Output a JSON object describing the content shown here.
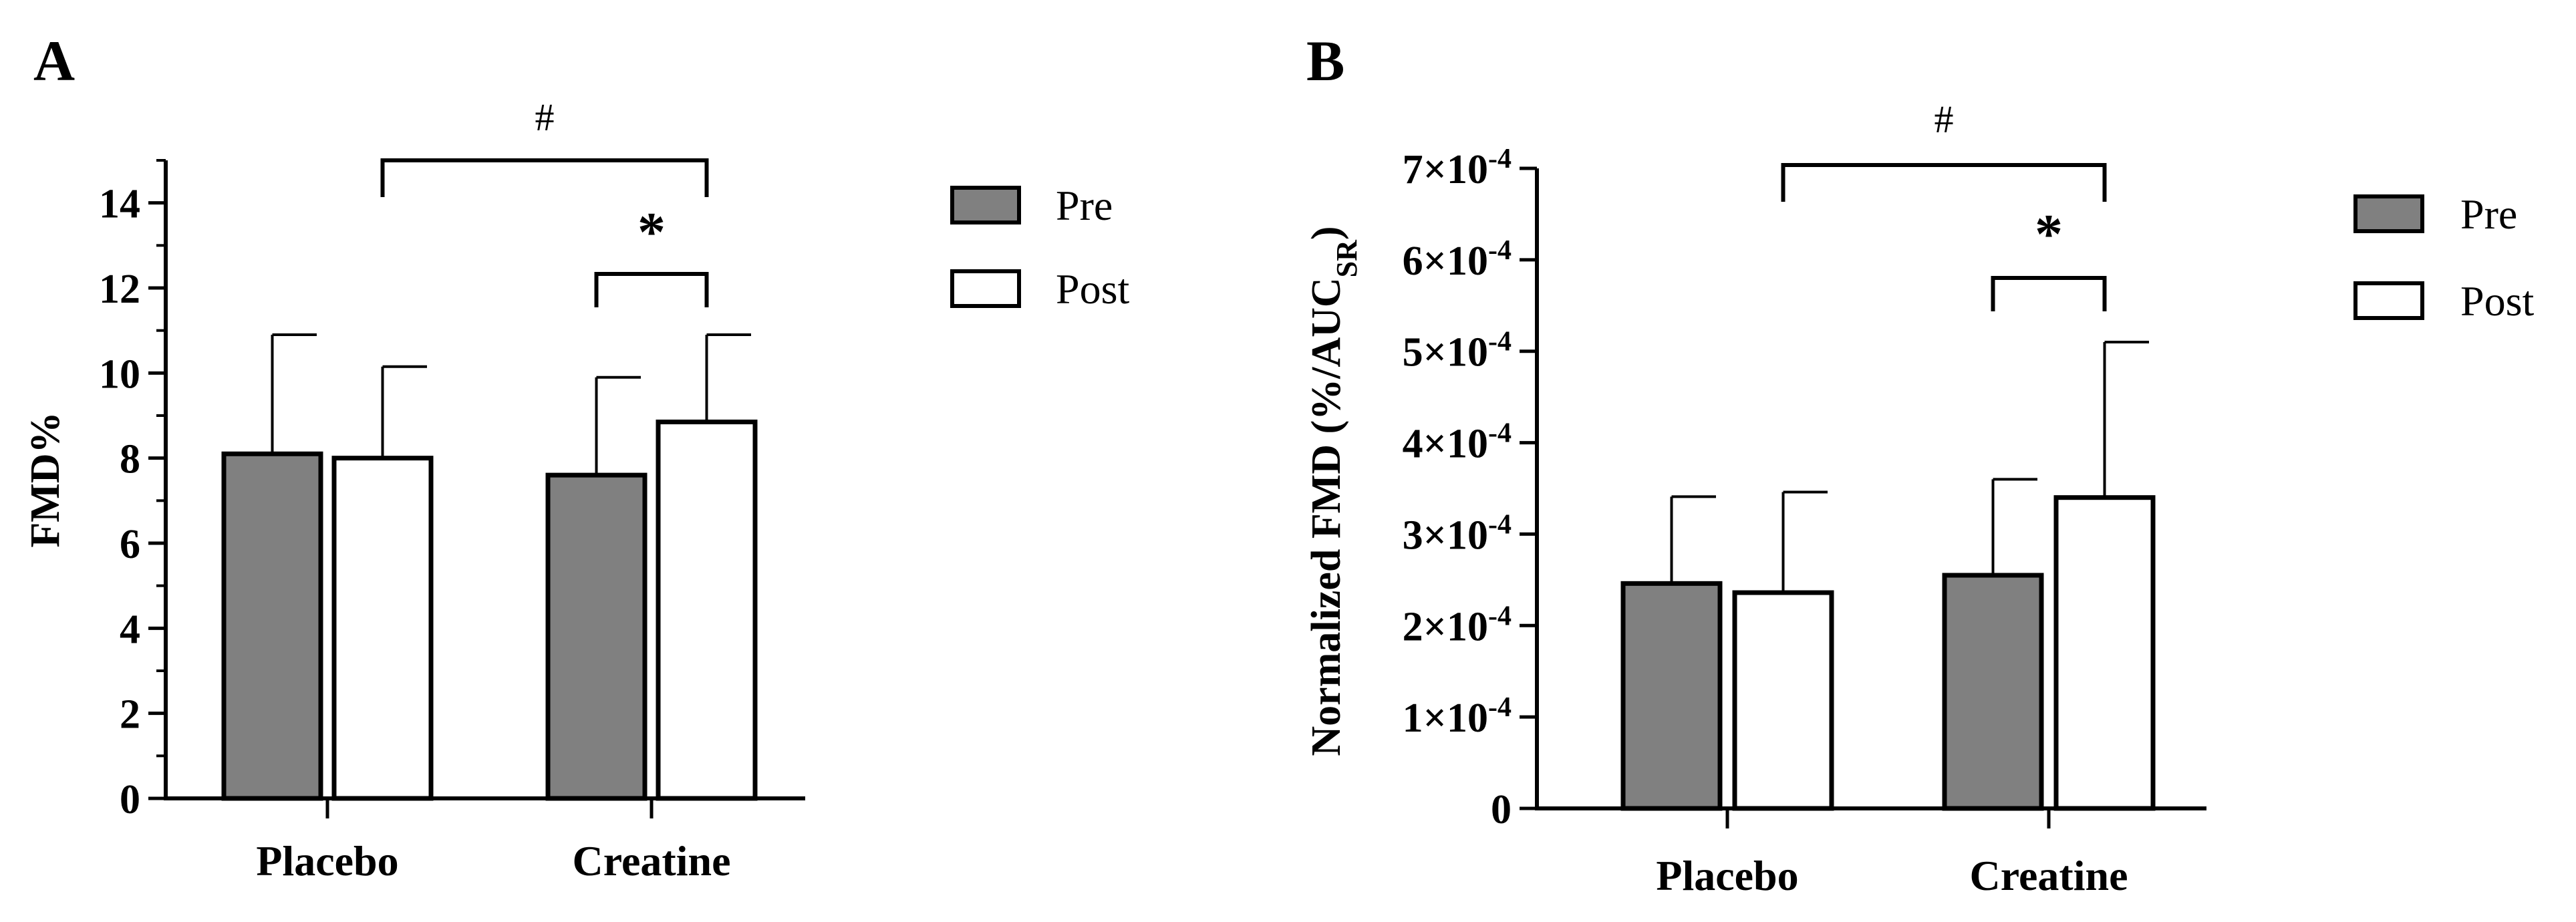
{
  "chart_data": [
    {
      "panel": "A",
      "type": "bar",
      "categories": [
        "Placebo",
        "Creatine"
      ],
      "series": [
        {
          "name": "Pre",
          "color": "#808080",
          "values": [
            8.1,
            7.6
          ],
          "error": [
            2.8,
            2.3
          ]
        },
        {
          "name": "Post",
          "color": "#ffffff",
          "values": [
            8.0,
            8.85
          ],
          "error": [
            2.15,
            2.05
          ]
        }
      ],
      "ylabel": "FMD%",
      "ylim": [
        0,
        15
      ],
      "yticks": [
        {
          "value": 0,
          "label": "0"
        },
        {
          "value": 2,
          "label": "2"
        },
        {
          "value": 4,
          "label": "4"
        },
        {
          "value": 6,
          "label": "6"
        },
        {
          "value": 8,
          "label": "8"
        },
        {
          "value": 10,
          "label": "10"
        },
        {
          "value": 12,
          "label": "12"
        },
        {
          "value": 14,
          "label": "14"
        }
      ],
      "minor_ticks": true,
      "legend_position": "top-right",
      "annotations": [
        {
          "label": "#",
          "from": "Placebo",
          "to": "Creatine",
          "level": 14.9
        },
        {
          "label": "*",
          "group": "Creatine",
          "level": 12.4
        }
      ]
    },
    {
      "panel": "B",
      "type": "bar",
      "categories": [
        "Placebo",
        "Creatine"
      ],
      "series": [
        {
          "name": "Pre",
          "color": "#808080",
          "values": [
            0.000246,
            0.000255
          ],
          "error": [
            9.5e-05,
            0.000105
          ]
        },
        {
          "name": "Post",
          "color": "#ffffff",
          "values": [
            0.000236,
            0.00034
          ],
          "error": [
            0.00011,
            0.00017
          ]
        }
      ],
      "ylabel": {
        "main": "Normalized FMD (%/AUC",
        "sub": "SR",
        "end": ")"
      },
      "ylim": [
        0,
        0.0007
      ],
      "yticks": [
        {
          "value": 0,
          "mantissa": "0",
          "exp": ""
        },
        {
          "value": 0.0001,
          "mantissa": "1×10",
          "exp": "-4"
        },
        {
          "value": 0.0002,
          "mantissa": "2×10",
          "exp": "-4"
        },
        {
          "value": 0.0003,
          "mantissa": "3×10",
          "exp": "-4"
        },
        {
          "value": 0.0004,
          "mantissa": "4×10",
          "exp": "-4"
        },
        {
          "value": 0.0005,
          "mantissa": "5×10",
          "exp": "-4"
        },
        {
          "value": 0.0006,
          "mantissa": "6×10",
          "exp": "-4"
        },
        {
          "value": 0.0007,
          "mantissa": "7×10",
          "exp": "-4"
        }
      ],
      "minor_ticks": false,
      "legend_position": "top-right",
      "annotations": [
        {
          "label": "#",
          "from": "Placebo",
          "to": "Creatine",
          "level": 0.000693
        },
        {
          "label": "*",
          "group": "Creatine",
          "level": 0.000582
        }
      ]
    }
  ]
}
